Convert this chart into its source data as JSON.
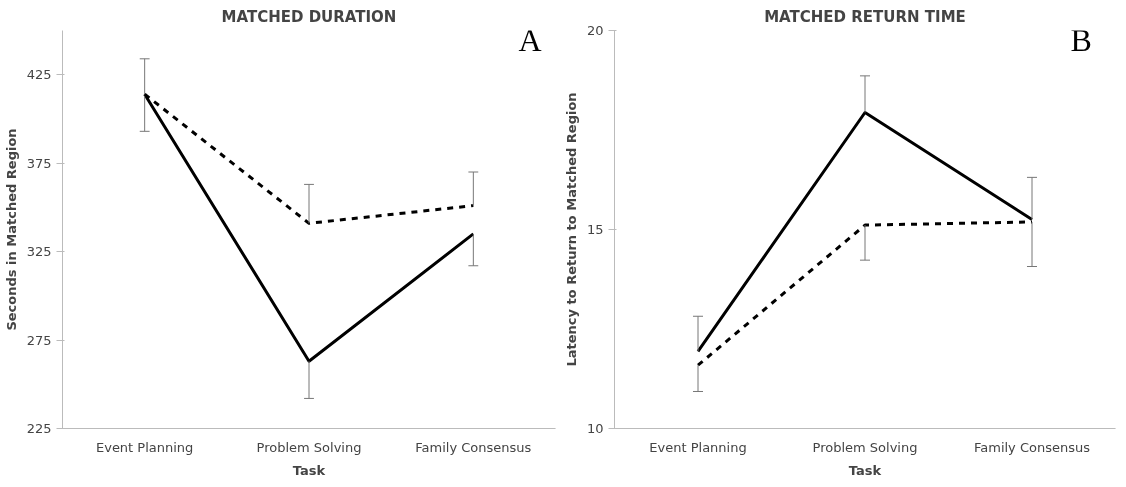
{
  "chart_data": [
    {
      "type": "line",
      "title": "MATCHED DURATION",
      "xlabel": "Task",
      "ylabel": "Seconds in Matched Region",
      "categories": [
        "Event Planning",
        "Problem Solving",
        "Family Consensus"
      ],
      "series": [
        {
          "color": "#000000",
          "line_style": "solid",
          "values": [
            414,
            263,
            335
          ],
          "errors": [
            [
              393,
              414
            ],
            [
              242,
              263
            ],
            [
              317,
              335
            ]
          ]
        },
        {
          "color": "#000000",
          "line_style": "dashed",
          "values": [
            414,
            341,
            351
          ],
          "errors": [
            [
              414,
              434
            ],
            [
              341,
              363
            ],
            [
              351,
              370
            ]
          ]
        }
      ],
      "ylim": [
        225,
        450
      ],
      "yticks": [
        225,
        275,
        325,
        375,
        425
      ],
      "annotations": [
        "A"
      ]
    },
    {
      "type": "line",
      "title": "MATCHED RETURN TIME",
      "xlabel": "Task",
      "ylabel": "Latency to Return to Matched Region",
      "categories": [
        "Event Planning",
        "Problem Solving",
        "Family Consensus"
      ],
      "series": [
        {
          "color": "#000000",
          "line_style": "solid",
          "values": [
            11.94,
            17.94,
            15.25
          ],
          "errors": [
            [
              11.94,
              12.82
            ],
            [
              17.94,
              18.86
            ],
            [
              15.25,
              16.31
            ]
          ]
        },
        {
          "color": "#000000",
          "line_style": "dashed",
          "values": [
            11.59,
            15.11,
            15.19
          ],
          "errors": [
            [
              10.93,
              11.59
            ],
            [
              14.23,
              15.11
            ],
            [
              14.07,
              15.19
            ]
          ]
        }
      ],
      "ylim": [
        10,
        20
      ],
      "yticks": [
        10,
        15,
        20
      ],
      "annotations": [
        "B"
      ]
    }
  ]
}
